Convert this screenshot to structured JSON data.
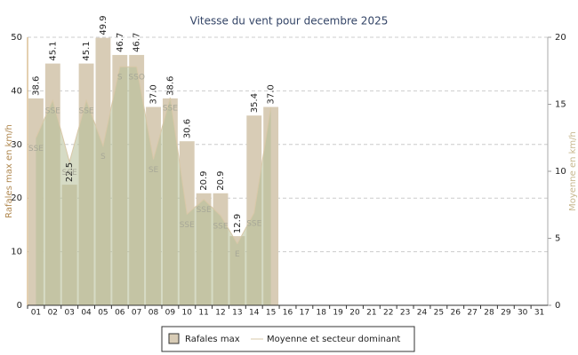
{
  "chart_data": {
    "type": "bar",
    "title": "Vitesse du vent pour decembre 2025",
    "ylabel": "Rafales max en km/h",
    "y2label": "Moyenne en km/h",
    "categories": [
      "01",
      "02",
      "03",
      "04",
      "05",
      "06",
      "07",
      "08",
      "09",
      "10",
      "11",
      "12",
      "13",
      "14",
      "15",
      "16",
      "17",
      "18",
      "19",
      "20",
      "21",
      "22",
      "23",
      "24",
      "25",
      "26",
      "27",
      "28",
      "29",
      "30",
      "31"
    ],
    "series": [
      {
        "name": "Rafales max",
        "type": "bar",
        "color": "#d8ccb6",
        "values": [
          38.6,
          45.1,
          22.5,
          45.1,
          49.9,
          46.7,
          46.7,
          37.0,
          38.6,
          30.6,
          20.9,
          20.9,
          12.9,
          35.4,
          37.0,
          null,
          null,
          null,
          null,
          null,
          null,
          null,
          null,
          null,
          null,
          null,
          null,
          null,
          null,
          null,
          null
        ],
        "value_labels": [
          "38.6",
          "45.1",
          "22.5",
          "45.1",
          "49.9",
          "46.7",
          "46.7",
          "37.0",
          "38.6",
          "30.6",
          "20.9",
          "20.9",
          "12.9",
          "35.4",
          "37.0",
          null,
          null,
          null,
          null,
          null,
          null,
          null,
          null,
          null,
          null,
          null,
          null,
          null,
          null,
          null,
          null
        ]
      },
      {
        "name": "Moyenne et secteur dominant",
        "type": "area",
        "axis": "y2",
        "color": "#d8c8a8",
        "values": [
          12.5,
          15.3,
          10.7,
          15.3,
          11.9,
          17.8,
          17.8,
          10.9,
          15.5,
          6.8,
          7.9,
          6.7,
          4.6,
          6.9,
          14.8,
          null,
          null,
          null,
          null,
          null,
          null,
          null,
          null,
          null,
          null,
          null,
          null,
          null,
          null,
          null,
          null
        ],
        "labels": [
          "SSE",
          "SSE",
          "SSE",
          "SSE",
          "S",
          "S",
          "SSO",
          "SE",
          "SSE",
          "SSE",
          "SSE",
          "SSE",
          "E",
          "SSE",
          null,
          null,
          null,
          null,
          null,
          null,
          null,
          null,
          null,
          null,
          null,
          null,
          null,
          null,
          null,
          null,
          null
        ]
      }
    ],
    "ylim": [
      0,
      50
    ],
    "yticks": [
      0,
      10,
      20,
      30,
      40,
      50
    ],
    "y2lim": [
      0,
      20
    ],
    "y2ticks": [
      0,
      5,
      10,
      15,
      20
    ],
    "grid": true
  }
}
